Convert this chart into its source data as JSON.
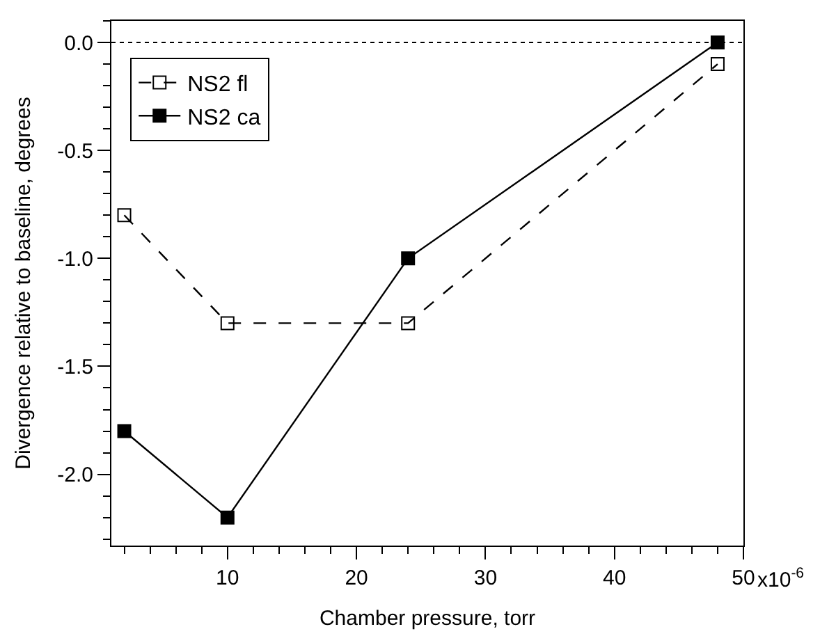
{
  "chart_data": {
    "type": "line",
    "xlabel": "Chamber pressure, torr",
    "ylabel": "Divergence relative to baseline, degrees",
    "x": [
      2,
      10,
      24,
      48
    ],
    "series": [
      {
        "name": "NS2 fl",
        "color": "#000000",
        "values": [
          -0.8,
          -1.3,
          -1.3,
          -0.1
        ],
        "line_style": "dashed",
        "marker": "square-open"
      },
      {
        "name": "NS2 ca",
        "color": "#000000",
        "values": [
          -1.8,
          -2.2,
          -1.0,
          0.0
        ],
        "line_style": "solid",
        "marker": "square"
      }
    ],
    "xlim": [
      1,
      50
    ],
    "xticks": [
      10,
      20,
      30,
      40,
      50
    ],
    "annotations": [
      "x10$^{-6}$"
    ],
    "ylim": [
      -2.33,
      0.1
    ],
    "yticks": [
      {
        "value": 0,
        "label": "0.0"
      },
      -0.5,
      {
        "value": -1,
        "label": "-1.0"
      },
      -1.5,
      {
        "value": -2,
        "label": "-2.0"
      }
    ],
    "ref_lines": [
      {
        "axis": "y",
        "value": 0,
        "line_style": "dotted",
        "color": "#000000"
      }
    ],
    "legend": "top left",
    "grid": false
  }
}
